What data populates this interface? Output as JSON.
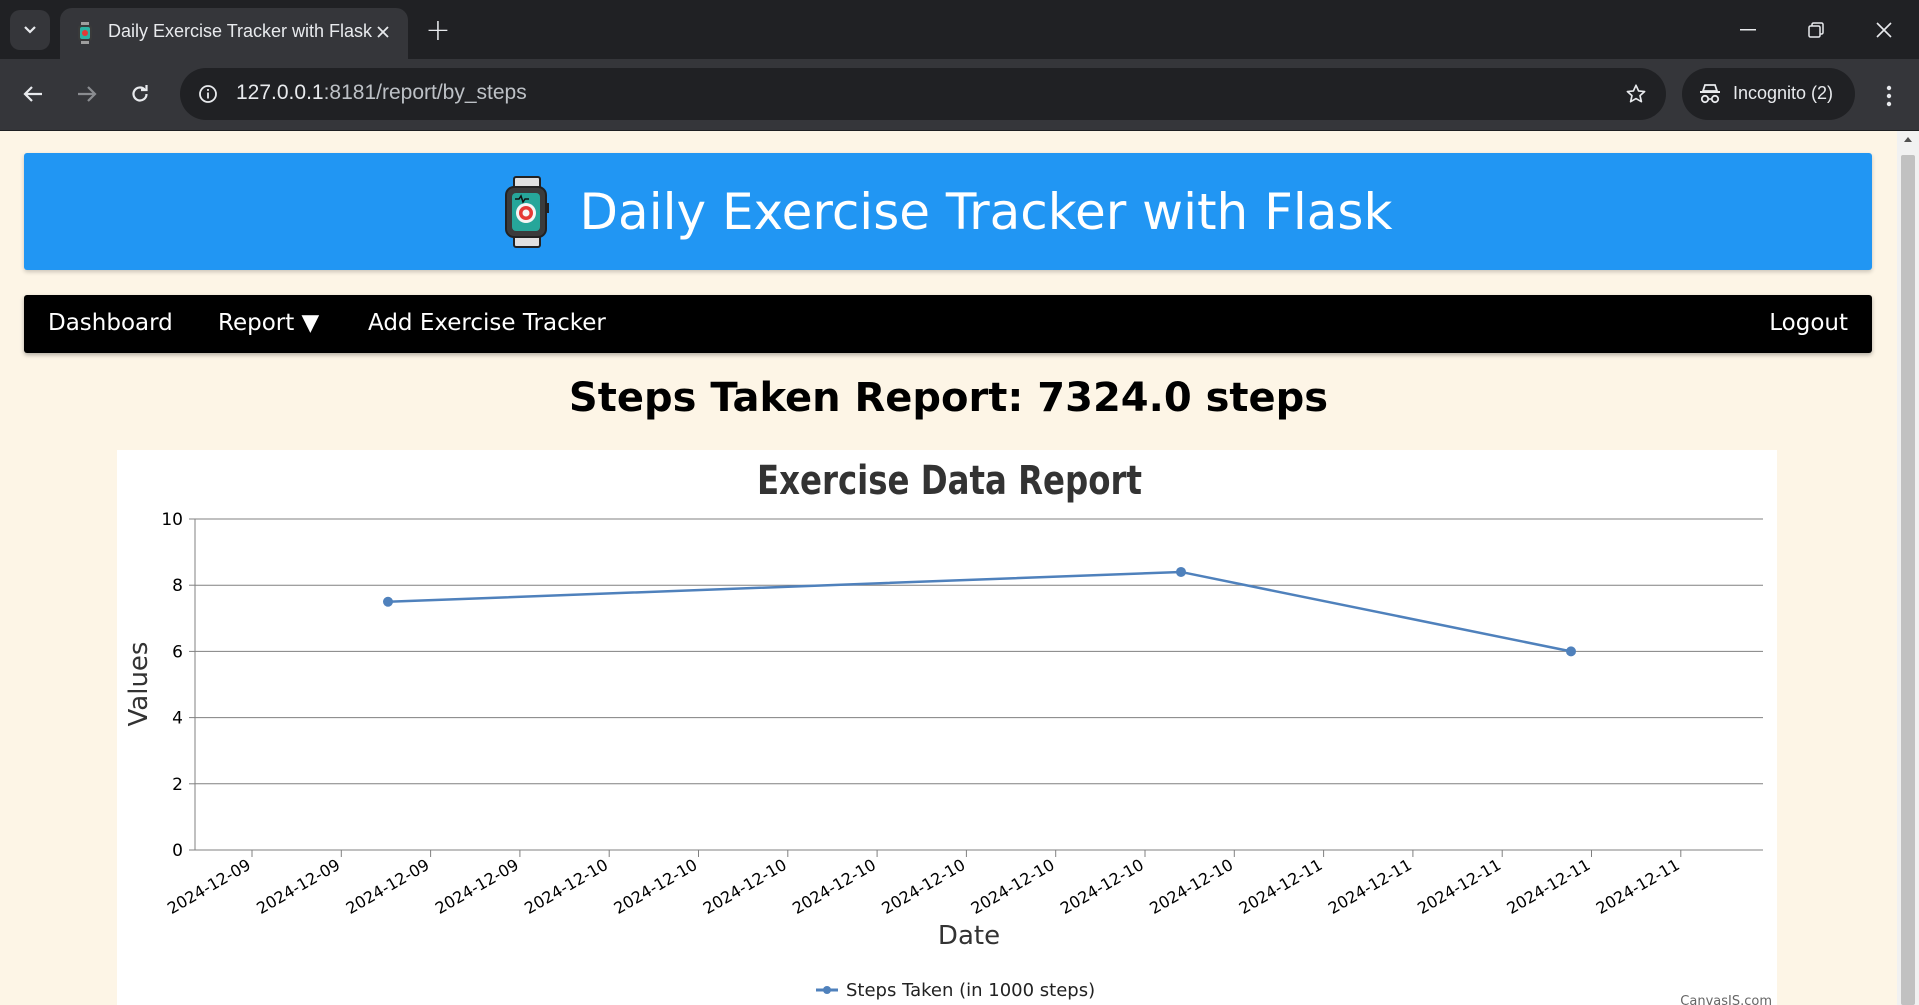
{
  "browser": {
    "tab_title": "Daily Exercise Tracker with Flask",
    "new_tab_symbol": "+",
    "url_host": "127.0.0.1",
    "url_rest": ":8181/report/by_steps",
    "incognito_label": "Incognito (2)"
  },
  "header": {
    "title": "Daily Exercise Tracker with Flask",
    "logo_icon": "smartwatch-icon"
  },
  "navbar": {
    "dashboard": "Dashboard",
    "report": "Report ▼",
    "add_tracker": "Add Exercise Tracker",
    "logout": "Logout"
  },
  "report": {
    "heading": "Steps Taken Report: 7324.0 steps"
  },
  "chart_data": {
    "type": "line",
    "title": "Exercise Data Report",
    "xlabel": "Date",
    "ylabel": "Values",
    "ylim": [
      0,
      10
    ],
    "yticks": [
      0,
      2,
      4,
      6,
      8,
      10
    ],
    "xtick_labels": [
      "2024-12-09",
      "2024-12-09",
      "2024-12-09",
      "2024-12-09",
      "2024-12-10",
      "2024-12-10",
      "2024-12-10",
      "2024-12-10",
      "2024-12-10",
      "2024-12-10",
      "2024-12-10",
      "2024-12-10",
      "2024-12-11",
      "2024-12-11",
      "2024-12-11",
      "2024-12-11",
      "2024-12-11"
    ],
    "grid": true,
    "legend_position": "bottom-center",
    "series": [
      {
        "name": "Steps Taken (in 1000 steps)",
        "color": "#4f81bc",
        "x": [
          "2024-12-09",
          "2024-12-10",
          "2024-12-11"
        ],
        "y": [
          7.5,
          8.4,
          6.0
        ]
      }
    ],
    "credit": "CanvasJS.com"
  },
  "colors": {
    "header_bg": "#2196f3",
    "navbar_bg": "#000000",
    "page_bg": "#fdf5e6",
    "series_line": "#4f81bc"
  }
}
